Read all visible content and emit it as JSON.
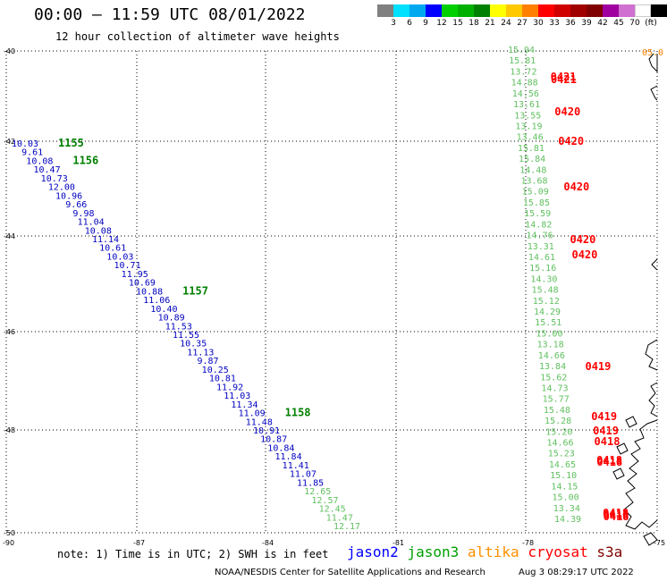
{
  "title": "00:00 — 11:59 UTC 08/01/2022",
  "subtitle": "12 hour collection of altimeter wave heights",
  "colorbar": {
    "colors": [
      "#808080",
      "#00e0ff",
      "#00a8f0",
      "#0000ff",
      "#00d000",
      "#00b000",
      "#008000",
      "#ffff00",
      "#ffc800",
      "#ff8000",
      "#ff0000",
      "#d00000",
      "#a00000",
      "#800000",
      "#a000a0",
      "#d070d0",
      "#ffffff",
      "#000000"
    ],
    "labels": [
      "3",
      "6",
      "9",
      "12",
      "15",
      "18",
      "21",
      "24",
      "27",
      "30",
      "33",
      "36",
      "39",
      "42",
      "45",
      "70",
      "(ft)"
    ]
  },
  "axes": {
    "lat_labels": [
      "-40",
      "-42",
      "-44",
      "-46",
      "-48",
      "-50"
    ],
    "lon_labels": [
      "-90",
      "-87",
      "-84",
      "-81",
      "-78",
      "-75"
    ]
  },
  "colors": {
    "jason2": "#0000c0",
    "jason3": "#008000",
    "altika": "#ff8000",
    "cryosat": "#ff0000",
    "s3a_light": "#60c060"
  },
  "track_left": [
    {
      "h": "10.03",
      "t": "1155"
    },
    {
      "h": "9.61",
      "t": ""
    },
    {
      "h": "10.08",
      "t": "1156"
    },
    {
      "h": "10.47",
      "t": ""
    },
    {
      "h": "10.73",
      "t": ""
    },
    {
      "h": "12.00",
      "t": ""
    },
    {
      "h": "10.96",
      "t": ""
    },
    {
      "h": "9.66",
      "t": ""
    },
    {
      "h": "9.98",
      "t": ""
    },
    {
      "h": "11.04",
      "t": ""
    },
    {
      "h": "10.08",
      "t": ""
    },
    {
      "h": "11.14",
      "t": ""
    },
    {
      "h": "10.61",
      "t": ""
    },
    {
      "h": "10.03",
      "t": ""
    },
    {
      "h": "10.71",
      "t": ""
    },
    {
      "h": "11.95",
      "t": ""
    },
    {
      "h": "10.69",
      "t": ""
    },
    {
      "h": "10.88",
      "t": "1157"
    },
    {
      "h": "11.06",
      "t": ""
    },
    {
      "h": "10.40",
      "t": ""
    },
    {
      "h": "10.89",
      "t": ""
    },
    {
      "h": "11.53",
      "t": ""
    },
    {
      "h": "11.55",
      "t": ""
    },
    {
      "h": "10.35",
      "t": ""
    },
    {
      "h": "11.13",
      "t": ""
    },
    {
      "h": "9.87",
      "t": ""
    },
    {
      "h": "10.25",
      "t": ""
    },
    {
      "h": "10.81",
      "t": ""
    },
    {
      "h": "11.92",
      "t": ""
    },
    {
      "h": "11.03",
      "t": ""
    },
    {
      "h": "11.34",
      "t": ""
    },
    {
      "h": "11.09",
      "t": "1158"
    },
    {
      "h": "11.48",
      "t": ""
    },
    {
      "h": "10.91",
      "t": ""
    },
    {
      "h": "10.87",
      "t": ""
    },
    {
      "h": "10.84",
      "t": ""
    },
    {
      "h": "11.84",
      "t": ""
    },
    {
      "h": "11.41",
      "t": ""
    },
    {
      "h": "11.07",
      "t": ""
    },
    {
      "h": "11.85",
      "t": ""
    },
    {
      "h": "12.65",
      "t": ""
    },
    {
      "h": "12.57",
      "t": ""
    },
    {
      "h": "12.45",
      "t": ""
    },
    {
      "h": "11.47",
      "t": ""
    },
    {
      "h": "12.17",
      "t": ""
    }
  ],
  "track_right_heights": [
    "15.94",
    "15.81",
    "13.72",
    "14.88",
    "14.56",
    "13.61",
    "13.55",
    "13.19",
    "13.46",
    "15.81",
    "15.84",
    "14.48",
    "13.68",
    "15.09",
    "15.85",
    "15.59",
    "14.82",
    "14.76",
    "13.31",
    "14.61",
    "15.16",
    "14.30",
    "15.48",
    "15.12",
    "14.29",
    "15.51",
    "15.00",
    "13.18",
    "14.66",
    "13.84",
    "15.62",
    "14.73",
    "15.77",
    "15.48",
    "15.28",
    "15.20",
    "14.66",
    "15.23",
    "14.65",
    "15.10",
    "14.15",
    "15.00",
    "13.34",
    "14.39"
  ],
  "track_right_times": [
    "0421",
    "0421",
    "0420",
    "0420",
    "0420",
    "0420",
    "0420",
    "0419",
    "0419",
    "0419",
    "0418",
    "0418",
    "0418",
    "0418",
    "0418",
    "0418"
  ],
  "corner_label": "05.0",
  "note": "note: 1) Time is in UTC; 2) SWH is in feet",
  "satellites": [
    "jason2",
    "jason3",
    "altika",
    "cryosat",
    "s3a"
  ],
  "credit": "NOAA/NESDIS Center for Satellite Applications and Research",
  "timestamp": "Aug  3 08:29:17 UTC 2022"
}
